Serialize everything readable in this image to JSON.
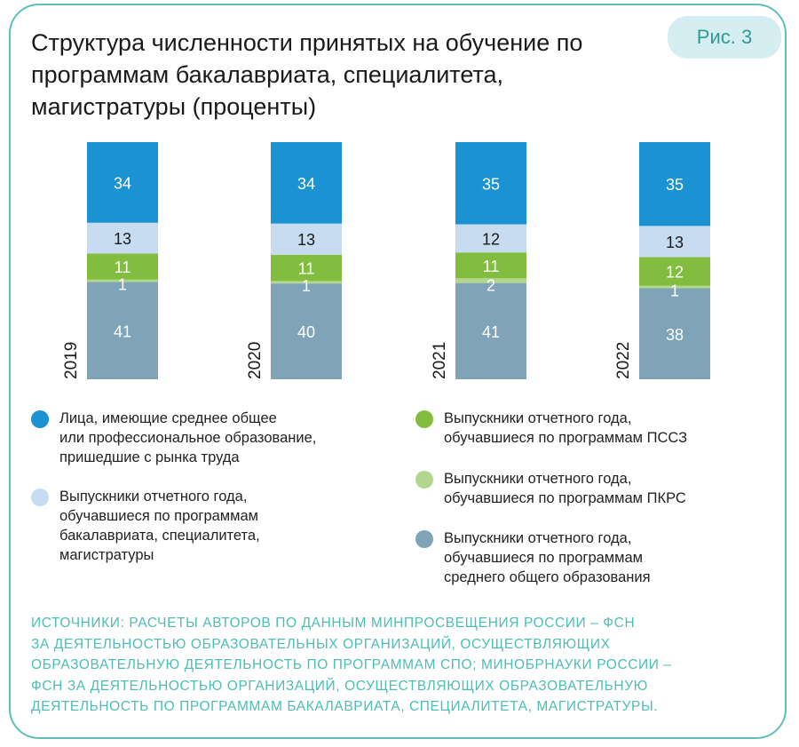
{
  "title": "Структура численности принятых на обучение по программам бакалавриата, специалитета, магистратуры (проценты)",
  "badge": "Рис. 3",
  "chart_data": {
    "type": "bar",
    "stacked": true,
    "orientation": "vertical",
    "categories": [
      "2019",
      "2020",
      "2021",
      "2022"
    ],
    "series": [
      {
        "name": "Выпускники отчетного года, обучавшиеся по программам среднего общего образования",
        "color": "#7fa3b7",
        "label_color": "#ffffff",
        "values": [
          41,
          40,
          41,
          38
        ]
      },
      {
        "name": "Выпускники отчетного года, обучавшиеся по программам ПКРС",
        "color": "#b3d68e",
        "label_color": "#ffffff",
        "values": [
          1,
          1,
          2,
          1
        ]
      },
      {
        "name": "Выпускники отчетного года, обучавшиеся по программам ПССЗ",
        "color": "#82bd3f",
        "label_color": "#ffffff",
        "values": [
          11,
          11,
          11,
          12
        ]
      },
      {
        "name": "Выпускники отчетного года, обучавшиеся по программам бакалавриата, специалитета, магистратуры",
        "color": "#c7dcf1",
        "label_color": "#1a1a1a",
        "values": [
          13,
          13,
          12,
          13
        ]
      },
      {
        "name": "Лица, имеющие среднее общее или профессиональное образование, пришедшие с рынка труда",
        "color": "#1b93d2",
        "label_color": "#ffffff",
        "values": [
          34,
          34,
          35,
          35
        ]
      }
    ],
    "ylabel": "",
    "grid": false,
    "legend_placement": "bottom"
  },
  "legend": [
    {
      "lines": "Лица, имеющие среднее общее\nили профессиональное образование,\nпришедшие с рынка труда",
      "color": "#1b93d2"
    },
    {
      "lines": "Выпускники отчетного года,\nобучавшиеся по программам\nбакалавриата, специалитета,\nмагистратуры",
      "color": "#c7dcf1"
    },
    {
      "lines": "Выпускники отчетного года,\nобучавшиеся по программам ПССЗ",
      "color": "#82bd3f"
    },
    {
      "lines": "Выпускники отчетного года,\nобучавшиеся по программам ПКРС",
      "color": "#b3d68e"
    },
    {
      "lines": "Выпускники отчетного года,\nобучавшиеся по программам\nсреднего общего образования",
      "color": "#7fa3b7"
    }
  ],
  "source_lines": [
    "ИСТОЧНИКИ: РАСЧЕТЫ АВТОРОВ ПО ДАННЫМ МИНПРОСВЕЩЕНИЯ РОССИИ – ФСН",
    "ЗА ДЕЯТЕЛЬНОСТЬЮ ОБРАЗОВАТЕЛЬНЫХ ОРГАНИЗАЦИЙ, ОСУЩЕСТВЛЯЮЩИХ",
    "ОБРАЗОВАТЕЛЬНУЮ ДЕЯТЕЛЬНОСТЬ ПО ПРОГРАММАМ СПО; МИНОБРНАУКИ РОССИИ –",
    "ФСН ЗА ДЕЯТЕЛЬНОСТЬЮ ОРГАНИЗАЦИЙ, ОСУЩЕСТВЛЯЮЩИХ ОБРАЗОВАТЕЛЬНУЮ",
    "ДЕЯТЕЛЬНОСТЬ ПО ПРОГРАММАМ БАКАЛАВРИАТА, СПЕЦИАЛИТЕТА, МАГИСТРАТУРЫ."
  ],
  "colors": {
    "border": "#5dbfb8",
    "source_text": "#4dbdb5",
    "badge_bg": "#d4eef2"
  }
}
